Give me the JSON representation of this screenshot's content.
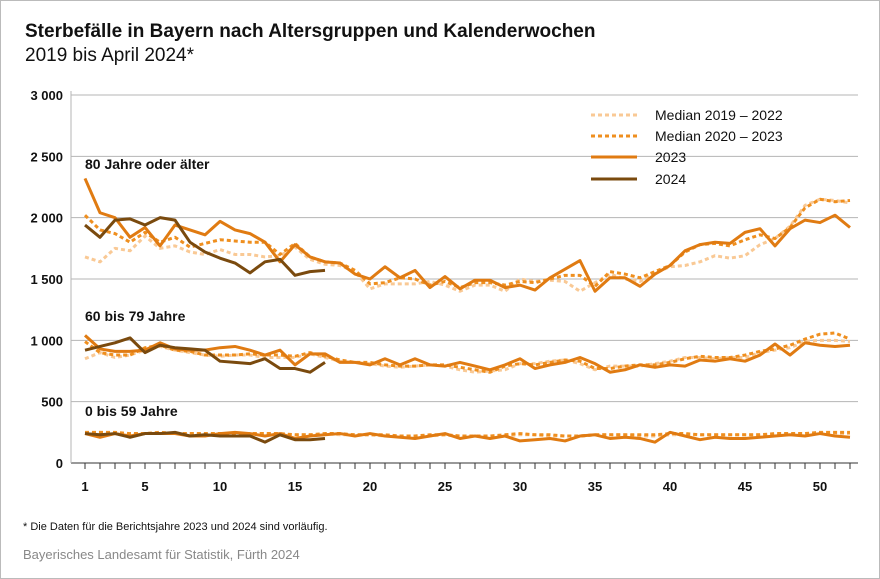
{
  "title": "Sterbefälle in Bayern nach Altersgruppen und Kalenderwochen",
  "subtitle": "2019 bis April 2024*",
  "footnote": "* Die Daten für die Berichtsjahre 2023 und 2024 sind vorläufig.",
  "source": "Bayerisches Landesamt für Statistik, Fürth 2024",
  "chart_data": {
    "type": "line",
    "xlabel": "",
    "ylabel": "",
    "xlim": [
      1,
      52
    ],
    "ylim": [
      0,
      3000
    ],
    "x_ticks": [
      1,
      5,
      10,
      15,
      20,
      25,
      30,
      35,
      40,
      45,
      50
    ],
    "y_ticks": [
      0,
      500,
      1000,
      1500,
      2000,
      2500,
      3000
    ],
    "y_tick_labels": [
      "0",
      "500",
      "1 000",
      "1 500",
      "2 000",
      "2 500",
      "3 000"
    ],
    "grid": "horizontal",
    "legend": "top-right",
    "group_labels": [
      "80 Jahre oder älter",
      "60 bis 79 Jahre",
      "0 bis 59 Jahre"
    ],
    "series_styles": [
      {
        "name": "Median 2019 – 2022",
        "color": "#f9c995",
        "style": "dotted"
      },
      {
        "name": "Median 2020 – 2023",
        "color": "#ef8f1f",
        "style": "dotted"
      },
      {
        "name": "2023",
        "color": "#e07b12",
        "style": "solid"
      },
      {
        "name": "2024",
        "color": "#7a4a0e",
        "style": "solid"
      }
    ],
    "groups": [
      {
        "label": "80 Jahre oder älter",
        "series": [
          [
            1680,
            1640,
            1750,
            1730,
            1850,
            1750,
            1770,
            1720,
            1700,
            1740,
            1700,
            1700,
            1680,
            1690,
            1760,
            1660,
            1620,
            1610,
            1560,
            1420,
            1460,
            1460,
            1460,
            1480,
            1450,
            1400,
            1450,
            1450,
            1400,
            1500,
            1480,
            1490,
            1480,
            1400,
            1470,
            1540,
            1500,
            1480,
            1550,
            1600,
            1610,
            1640,
            1690,
            1670,
            1690,
            1780,
            1830,
            1930,
            2100,
            2150,
            2140,
            2120
          ],
          [
            2020,
            1900,
            1870,
            1800,
            1880,
            1800,
            1840,
            1760,
            1790,
            1820,
            1810,
            1800,
            1800,
            1700,
            1790,
            1680,
            1640,
            1630,
            1570,
            1460,
            1470,
            1510,
            1500,
            1450,
            1480,
            1430,
            1470,
            1470,
            1450,
            1480,
            1470,
            1500,
            1530,
            1530,
            1440,
            1560,
            1540,
            1510,
            1560,
            1610,
            1720,
            1780,
            1790,
            1770,
            1820,
            1860,
            1830,
            1920,
            2080,
            2150,
            2130,
            2140
          ],
          [
            2320,
            2040,
            2000,
            1840,
            1920,
            1770,
            1940,
            1900,
            1860,
            1970,
            1900,
            1870,
            1800,
            1640,
            1780,
            1680,
            1640,
            1630,
            1540,
            1500,
            1600,
            1510,
            1570,
            1430,
            1520,
            1420,
            1490,
            1490,
            1430,
            1450,
            1410,
            1510,
            1580,
            1650,
            1400,
            1510,
            1510,
            1440,
            1540,
            1610,
            1730,
            1780,
            1800,
            1790,
            1880,
            1910,
            1770,
            1910,
            1980,
            1960,
            2020,
            1920
          ],
          [
            1940,
            1840,
            1980,
            1990,
            1940,
            2000,
            1980,
            1800,
            1720,
            1670,
            1630,
            1550,
            1640,
            1660,
            1530,
            1560,
            1570
          ]
        ]
      },
      {
        "label": "60 bis 79 Jahre",
        "series": [
          [
            850,
            900,
            860,
            880,
            920,
            950,
            920,
            900,
            880,
            870,
            880,
            880,
            860,
            860,
            860,
            890,
            860,
            830,
            820,
            810,
            790,
            780,
            790,
            800,
            790,
            760,
            740,
            750,
            760,
            810,
            810,
            830,
            840,
            810,
            760,
            790,
            790,
            790,
            810,
            830,
            860,
            860,
            850,
            860,
            860,
            900,
            920,
            940,
            990,
            1000,
            1000,
            990
          ],
          [
            990,
            900,
            880,
            880,
            940,
            960,
            920,
            910,
            880,
            880,
            880,
            890,
            880,
            880,
            870,
            900,
            870,
            840,
            820,
            820,
            800,
            790,
            790,
            800,
            800,
            780,
            760,
            740,
            790,
            810,
            800,
            820,
            840,
            830,
            770,
            770,
            790,
            800,
            800,
            820,
            850,
            870,
            860,
            860,
            880,
            910,
            930,
            960,
            1010,
            1050,
            1060,
            1010
          ],
          [
            1040,
            930,
            910,
            910,
            920,
            980,
            930,
            920,
            920,
            940,
            950,
            920,
            880,
            920,
            800,
            890,
            890,
            820,
            820,
            800,
            850,
            800,
            850,
            800,
            790,
            820,
            790,
            760,
            800,
            850,
            770,
            800,
            820,
            860,
            810,
            740,
            760,
            800,
            780,
            800,
            790,
            840,
            830,
            850,
            830,
            880,
            970,
            880,
            980,
            960,
            950,
            960
          ],
          [
            920,
            950,
            980,
            1020,
            900,
            960,
            940,
            930,
            920,
            830,
            820,
            810,
            850,
            770,
            770,
            740,
            820
          ]
        ]
      },
      {
        "label": "0 bis 59 Jahre",
        "series": [
          [
            240,
            250,
            240,
            230,
            240,
            250,
            240,
            240,
            230,
            230,
            240,
            240,
            240,
            230,
            230,
            230,
            240,
            230,
            230,
            230,
            220,
            220,
            220,
            220,
            230,
            220,
            220,
            220,
            220,
            230,
            230,
            220,
            220,
            220,
            230,
            230,
            230,
            220,
            220,
            230,
            230,
            230,
            230,
            230,
            230,
            230,
            230,
            230,
            240,
            240,
            240,
            240
          ],
          [
            250,
            250,
            250,
            240,
            240,
            250,
            240,
            240,
            240,
            240,
            240,
            240,
            240,
            240,
            230,
            230,
            240,
            240,
            230,
            230,
            230,
            220,
            220,
            230,
            230,
            220,
            220,
            220,
            230,
            240,
            230,
            230,
            220,
            220,
            230,
            230,
            230,
            230,
            230,
            240,
            240,
            230,
            230,
            230,
            230,
            230,
            240,
            240,
            240,
            250,
            250,
            250
          ],
          [
            240,
            210,
            240,
            220,
            240,
            240,
            240,
            220,
            220,
            240,
            250,
            240,
            220,
            240,
            200,
            220,
            230,
            240,
            220,
            240,
            220,
            210,
            200,
            220,
            240,
            200,
            220,
            200,
            220,
            180,
            190,
            200,
            180,
            220,
            230,
            200,
            210,
            200,
            170,
            250,
            220,
            190,
            210,
            200,
            200,
            210,
            220,
            230,
            220,
            240,
            220,
            210
          ],
          [
            240,
            230,
            240,
            210,
            240,
            240,
            250,
            220,
            230,
            220,
            220,
            220,
            170,
            230,
            190,
            190,
            200
          ]
        ]
      }
    ]
  }
}
